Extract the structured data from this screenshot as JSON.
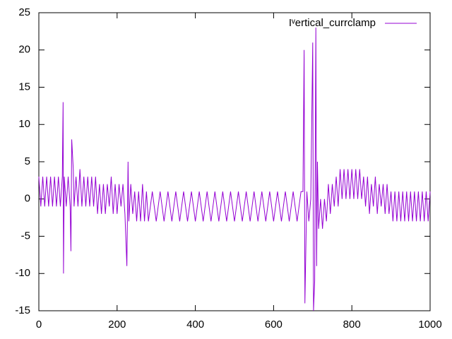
{
  "chart_data": {
    "type": "line",
    "series": [
      {
        "name": "Iᵛertical_currclamp",
        "color": "#9400d3",
        "x": [
          0,
          5,
          10,
          15,
          20,
          25,
          30,
          35,
          40,
          45,
          50,
          55,
          60,
          62,
          63,
          65,
          70,
          75,
          80,
          82,
          84,
          88,
          90,
          95,
          100,
          105,
          110,
          115,
          120,
          125,
          130,
          135,
          140,
          145,
          150,
          155,
          160,
          165,
          170,
          175,
          180,
          185,
          190,
          195,
          200,
          205,
          210,
          215,
          220,
          225,
          228,
          230,
          235,
          240,
          245,
          250,
          255,
          260,
          265,
          270,
          275,
          280,
          290,
          300,
          310,
          320,
          330,
          340,
          350,
          360,
          370,
          380,
          390,
          400,
          410,
          420,
          430,
          440,
          450,
          460,
          470,
          480,
          490,
          500,
          510,
          520,
          530,
          540,
          550,
          560,
          570,
          580,
          590,
          600,
          610,
          620,
          630,
          640,
          650,
          660,
          670,
          675,
          678,
          680,
          685,
          690,
          695,
          700,
          702,
          705,
          708,
          710,
          712,
          715,
          720,
          725,
          730,
          735,
          740,
          745,
          750,
          755,
          760,
          765,
          770,
          775,
          780,
          785,
          790,
          795,
          800,
          805,
          810,
          815,
          820,
          825,
          830,
          835,
          840,
          845,
          850,
          855,
          860,
          865,
          870,
          875,
          880,
          885,
          890,
          895,
          900,
          905,
          910,
          915,
          920,
          925,
          930,
          935,
          940,
          945,
          950,
          955,
          960,
          965,
          970,
          975,
          980,
          985,
          990,
          995,
          1000
        ],
        "values": [
          3,
          -1,
          3,
          -1,
          3,
          -1,
          3,
          -1,
          3,
          -1,
          3,
          -1,
          3,
          13,
          -10,
          3,
          -1,
          3,
          -1,
          -7,
          8,
          4,
          -1,
          3,
          -1,
          4,
          -1,
          3,
          -1,
          3,
          -1,
          3,
          -1,
          3,
          -2,
          2,
          -2,
          2,
          -2,
          2,
          -1,
          3,
          -2,
          2,
          -2,
          2,
          -1,
          2,
          -2,
          -9,
          5,
          -3,
          2,
          -2,
          1,
          -3,
          1,
          -3,
          2,
          -3,
          1,
          -3,
          1,
          -3,
          1,
          -3,
          1,
          -3,
          1,
          -3,
          1,
          -3,
          1,
          -3,
          1,
          -3,
          1,
          -3,
          1,
          -3,
          1,
          -3,
          1,
          -3,
          1,
          -3,
          1,
          -3,
          1,
          -3,
          1,
          -3,
          1,
          -3,
          1,
          -3,
          1,
          -3,
          1,
          -3,
          1,
          1,
          20,
          -14,
          1,
          -3,
          0,
          21,
          -15,
          -11,
          23,
          -9,
          5,
          -4,
          0,
          -4,
          0,
          -3,
          2,
          -2,
          2,
          -1,
          3,
          -1,
          4,
          0,
          4,
          0,
          4,
          0,
          4,
          0,
          4,
          0,
          4,
          0,
          3,
          -1,
          3,
          -2,
          2,
          -1,
          3,
          -2,
          2,
          -1,
          2,
          -2,
          2,
          -2,
          1,
          -3,
          1,
          -3,
          1,
          -3,
          1,
          -3,
          1,
          -3,
          1,
          -3,
          1,
          -3,
          1,
          -3,
          1,
          -3,
          1,
          -3,
          1
        ]
      }
    ],
    "xlim": [
      0,
      1000
    ],
    "xticks": [
      0,
      200,
      400,
      600,
      800,
      1000
    ],
    "ylim": [
      -15,
      25
    ],
    "yticks": [
      -15,
      -10,
      -5,
      0,
      5,
      10,
      15,
      20,
      25
    ],
    "legend": "top-right"
  }
}
